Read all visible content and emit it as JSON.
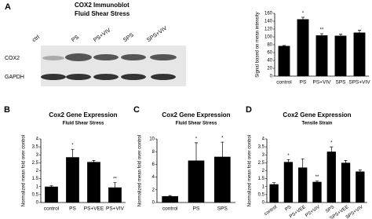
{
  "blot": {
    "panel": "A",
    "title": "COX2 Immunoblot",
    "subtitle": "Fluid Shear Stress",
    "lanes": [
      "ctrl",
      "PS",
      "PS+VIV",
      "SPS",
      "SPS+VIV"
    ],
    "rows": [
      "COX2",
      "GAPDH"
    ]
  },
  "chart_data": [
    {
      "type": "bar",
      "ylabel": "Signal based on mean intensity",
      "categories": [
        "control",
        "PS",
        "PS+VIV",
        "SPS",
        "SPS+VIV"
      ],
      "values": [
        77,
        145,
        104,
        103,
        111
      ],
      "errors": [
        1,
        5,
        4,
        4,
        6
      ],
      "significance": [
        null,
        "*",
        "**",
        null,
        null
      ],
      "color": "#000000",
      "ylim": [
        0,
        160
      ],
      "yticks": [
        0,
        20,
        40,
        60,
        80,
        100,
        120,
        140,
        160
      ]
    },
    {
      "type": "bar",
      "panel": "B",
      "title": "Cox2 Gene Expression",
      "subtitle": "Fluid Shear Stress",
      "ylabel": "Normalized mean fold over control",
      "categories": [
        "control",
        "PS",
        "PS+VEE",
        "PS+VIV"
      ],
      "values": [
        1,
        2.85,
        2.55,
        0.95
      ],
      "errors": [
        0.05,
        0.5,
        0.1,
        0.3
      ],
      "significance": [
        null,
        "*",
        null,
        "**"
      ],
      "color": "#000000",
      "ylim": [
        0,
        4
      ],
      "yticks": [
        0,
        0.5,
        1,
        1.5,
        2,
        2.5,
        3,
        3.5,
        4
      ]
    },
    {
      "type": "bar",
      "panel": "C",
      "title": "Cox2 Gene Expression",
      "subtitle": "Fluid Shear Stress",
      "ylabel": "Normalized mean fold over control",
      "categories": [
        "control",
        "PS",
        "SPS"
      ],
      "values": [
        1,
        6.6,
        7.2
      ],
      "errors": [
        0.1,
        2.8,
        2.3
      ],
      "significance": [
        null,
        "*",
        "*"
      ],
      "color": "#000000",
      "ylim": [
        0,
        10
      ],
      "yticks": [
        0,
        2,
        4,
        6,
        8,
        10
      ]
    },
    {
      "type": "bar",
      "panel": "D",
      "title": "Cox2 Gene Expression",
      "subtitle": "Tensile Strain",
      "ylabel": "Normalized mean fold over control",
      "categories": [
        "control",
        "PS",
        "PS+VEE",
        "PS+VIV",
        "SPS",
        "SPS+VEE",
        "SPS+VIV"
      ],
      "values": [
        1.15,
        2.55,
        2.2,
        1.3,
        3.2,
        2.5,
        1.95
      ],
      "errors": [
        0.1,
        0.15,
        0.55,
        0.05,
        0.3,
        0.15,
        0.1
      ],
      "significance": [
        null,
        "*",
        null,
        "**",
        "*",
        null,
        null
      ],
      "color": "#000000",
      "ylim": [
        0,
        4
      ],
      "yticks": [
        0,
        0.5,
        1,
        1.5,
        2,
        2.5,
        3,
        3.5,
        4
      ]
    }
  ]
}
